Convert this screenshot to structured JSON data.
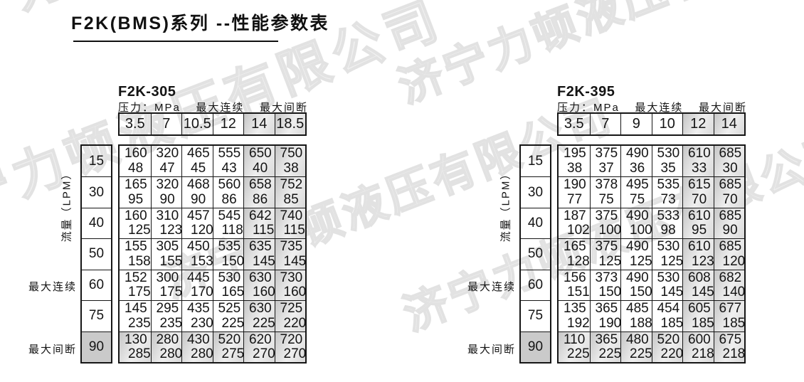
{
  "page": {
    "title": "F2K(BMS)系列 --性能参数表"
  },
  "watermark": {
    "text": "济宁力顿液压有限公司",
    "color": "#e6e6e6"
  },
  "labels": {
    "pressure_header": "压力：MPa",
    "max_continuous": "最大连续",
    "max_intermittent": "最大间断",
    "flow_lpm": "流量（LPM）"
  },
  "tables": [
    {
      "model": "F2K-305",
      "pressures": [
        "3.5",
        "7",
        "10.5",
        "12",
        "14",
        "18.5"
      ],
      "shaded_pressure_start": 4,
      "rows": [
        {
          "flow": "15",
          "values": [
            [
              "160",
              "48"
            ],
            [
              "320",
              "47"
            ],
            [
              "465",
              "45"
            ],
            [
              "555",
              "43"
            ],
            [
              "650",
              "40"
            ],
            [
              "750",
              "38"
            ]
          ]
        },
        {
          "flow": "30",
          "values": [
            [
              "165",
              "95"
            ],
            [
              "320",
              "90"
            ],
            [
              "468",
              "90"
            ],
            [
              "560",
              "86"
            ],
            [
              "658",
              "86"
            ],
            [
              "752",
              "85"
            ]
          ]
        },
        {
          "flow": "40",
          "values": [
            [
              "160",
              "125"
            ],
            [
              "310",
              "123"
            ],
            [
              "457",
              "120"
            ],
            [
              "545",
              "118"
            ],
            [
              "642",
              "115"
            ],
            [
              "740",
              "115"
            ]
          ]
        },
        {
          "flow": "50",
          "values": [
            [
              "155",
              "158"
            ],
            [
              "305",
              "155"
            ],
            [
              "450",
              "153"
            ],
            [
              "535",
              "150"
            ],
            [
              "635",
              "145"
            ],
            [
              "735",
              "145"
            ]
          ]
        },
        {
          "flow": "60",
          "values": [
            [
              "152",
              "175"
            ],
            [
              "300",
              "175"
            ],
            [
              "445",
              "170"
            ],
            [
              "530",
              "165"
            ],
            [
              "630",
              "160"
            ],
            [
              "730",
              "160"
            ]
          ]
        },
        {
          "flow": "75",
          "values": [
            [
              "145",
              "235"
            ],
            [
              "295",
              "235"
            ],
            [
              "435",
              "230"
            ],
            [
              "525",
              "225"
            ],
            [
              "630",
              "225"
            ],
            [
              "725",
              "220"
            ]
          ]
        },
        {
          "flow": "90",
          "values": [
            [
              "130",
              "285"
            ],
            [
              "280",
              "280"
            ],
            [
              "430",
              "280"
            ],
            [
              "520",
              "275"
            ],
            [
              "620",
              "270"
            ],
            [
              "720",
              "270"
            ]
          ]
        }
      ]
    },
    {
      "model": "F2K-395",
      "pressures": [
        "3.5",
        "7",
        "9",
        "10",
        "12",
        "14"
      ],
      "shaded_pressure_start": 4,
      "rows": [
        {
          "flow": "15",
          "values": [
            [
              "195",
              "38"
            ],
            [
              "375",
              "37"
            ],
            [
              "490",
              "36"
            ],
            [
              "530",
              "35"
            ],
            [
              "610",
              "33"
            ],
            [
              "685",
              "30"
            ]
          ]
        },
        {
          "flow": "30",
          "values": [
            [
              "190",
              "77"
            ],
            [
              "378",
              "75"
            ],
            [
              "495",
              "75"
            ],
            [
              "535",
              "73"
            ],
            [
              "615",
              "70"
            ],
            [
              "685",
              "70"
            ]
          ]
        },
        {
          "flow": "40",
          "values": [
            [
              "187",
              "102"
            ],
            [
              "375",
              "100"
            ],
            [
              "490",
              "100"
            ],
            [
              "533",
              "98"
            ],
            [
              "610",
              "95"
            ],
            [
              "685",
              "90"
            ]
          ]
        },
        {
          "flow": "50",
          "values": [
            [
              "165",
              "128"
            ],
            [
              "375",
              "125"
            ],
            [
              "490",
              "125"
            ],
            [
              "530",
              "125"
            ],
            [
              "610",
              "123"
            ],
            [
              "685",
              "120"
            ]
          ]
        },
        {
          "flow": "60",
          "values": [
            [
              "156",
              "151"
            ],
            [
              "373",
              "150"
            ],
            [
              "490",
              "150"
            ],
            [
              "530",
              "145"
            ],
            [
              "608",
              "145"
            ],
            [
              "682",
              "140"
            ]
          ]
        },
        {
          "flow": "75",
          "values": [
            [
              "135",
              "192"
            ],
            [
              "365",
              "190"
            ],
            [
              "485",
              "188"
            ],
            [
              "454",
              "185"
            ],
            [
              "605",
              "185"
            ],
            [
              "677",
              "185"
            ]
          ]
        },
        {
          "flow": "90",
          "values": [
            [
              "110",
              "225"
            ],
            [
              "365",
              "225"
            ],
            [
              "480",
              "225"
            ],
            [
              "520",
              "220"
            ],
            [
              "600",
              "218"
            ],
            [
              "675",
              "218"
            ]
          ]
        }
      ]
    }
  ]
}
